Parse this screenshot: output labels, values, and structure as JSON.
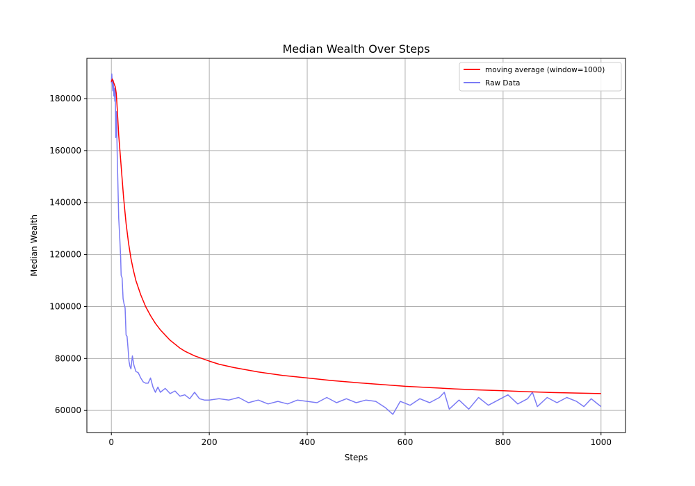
{
  "chart_data": {
    "type": "line",
    "title": "Median Wealth Over Steps",
    "xlabel": "Steps",
    "ylabel": "Median Wealth",
    "xlim": [
      -50,
      1050
    ],
    "ylim": [
      51500,
      195500
    ],
    "xticks": [
      0,
      200,
      400,
      600,
      800,
      1000
    ],
    "yticks": [
      60000,
      80000,
      100000,
      120000,
      140000,
      160000,
      180000
    ],
    "grid": true,
    "legend_position": "top-right",
    "series": [
      {
        "name": "moving average (window=1000)",
        "color": "#ff0000",
        "x": [
          0,
          2,
          5,
          8,
          10,
          12,
          15,
          20,
          25,
          30,
          35,
          40,
          45,
          50,
          60,
          70,
          80,
          90,
          100,
          110,
          120,
          130,
          140,
          150,
          170,
          200,
          220,
          250,
          300,
          350,
          400,
          450,
          500,
          550,
          600,
          650,
          700,
          750,
          800,
          850,
          900,
          950,
          1000
        ],
        "y": [
          186500,
          187500,
          186000,
          184500,
          182000,
          176000,
          166000,
          154000,
          142000,
          132000,
          124500,
          118500,
          114000,
          110000,
          104500,
          100000,
          96500,
          93500,
          91000,
          89000,
          87000,
          85500,
          84000,
          82800,
          81000,
          79000,
          77800,
          76500,
          74800,
          73500,
          72500,
          71500,
          70700,
          70000,
          69300,
          68800,
          68300,
          67900,
          67600,
          67200,
          66900,
          66700,
          66500
        ]
      },
      {
        "name": "Raw Data",
        "color": "#7b7bf5",
        "x": [
          0,
          1,
          2,
          3,
          4,
          5,
          6,
          7,
          8,
          9,
          10,
          11,
          12,
          13,
          15,
          17,
          19,
          20,
          22,
          24,
          26,
          28,
          30,
          32,
          34,
          36,
          38,
          40,
          43,
          46,
          50,
          55,
          60,
          65,
          70,
          75,
          80,
          85,
          90,
          95,
          100,
          110,
          120,
          130,
          140,
          150,
          160,
          170,
          180,
          190,
          200,
          220,
          240,
          260,
          280,
          300,
          320,
          340,
          360,
          380,
          400,
          420,
          440,
          460,
          480,
          500,
          520,
          540,
          560,
          575,
          590,
          610,
          630,
          650,
          670,
          680,
          690,
          710,
          730,
          750,
          770,
          790,
          810,
          830,
          850,
          860,
          870,
          890,
          910,
          930,
          950,
          965,
          980,
          990,
          1000
        ],
        "y": [
          186000,
          189500,
          185500,
          183000,
          187000,
          181000,
          184000,
          179000,
          183500,
          165000,
          175000,
          168000,
          158000,
          150000,
          134000,
          127000,
          119000,
          112000,
          111000,
          103000,
          101000,
          99500,
          89000,
          88500,
          84000,
          79000,
          77000,
          76000,
          81000,
          77500,
          75000,
          74500,
          72500,
          71000,
          70500,
          70500,
          72500,
          69000,
          67000,
          69000,
          67000,
          68500,
          66500,
          67500,
          65500,
          66000,
          64500,
          67000,
          64500,
          64000,
          64000,
          64500,
          64000,
          65000,
          63000,
          64000,
          62500,
          63500,
          62500,
          64000,
          63500,
          63000,
          65000,
          63000,
          64500,
          63000,
          64000,
          63500,
          61000,
          58500,
          63500,
          62000,
          64500,
          63000,
          65000,
          67000,
          60500,
          64000,
          60500,
          65000,
          62000,
          64000,
          66000,
          62500,
          64500,
          67000,
          61500,
          65000,
          63000,
          65000,
          63500,
          61500,
          64500,
          63000,
          61500
        ]
      }
    ]
  }
}
